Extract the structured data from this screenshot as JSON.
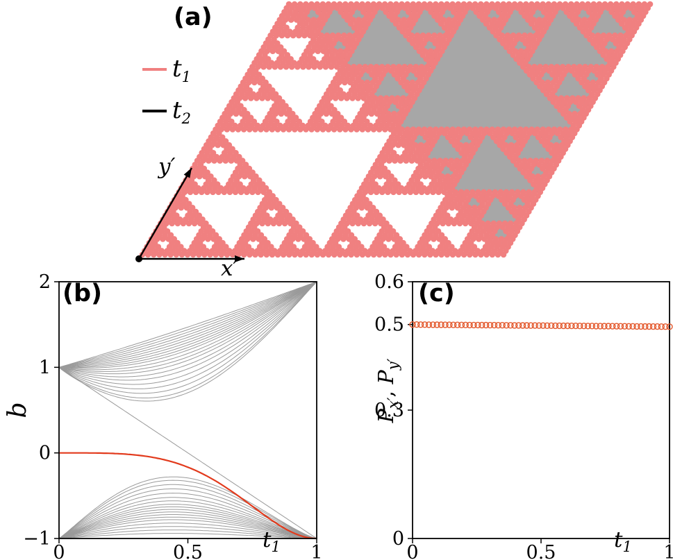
{
  "panel_a": {
    "label": "(a)",
    "legend": [
      {
        "main": "t",
        "sub": "1",
        "color": "#F08080"
      },
      {
        "main": "t",
        "sub": "2",
        "color": "#000000"
      }
    ],
    "x_axis_label": "x′",
    "y_axis_label": "y′",
    "lattice": {
      "type": "sierpinski-gasket-rhombus",
      "depth": 5,
      "site_color": "#F08080",
      "bond_color": "#141414",
      "hole_fill_upper": "#a7a7a7"
    }
  },
  "chart_data": [
    {
      "id": "b",
      "type": "line",
      "panel_label": "(b)",
      "xlabel": {
        "main": "t",
        "sub": "1"
      },
      "ylabel": "b",
      "xlim": [
        0,
        1
      ],
      "ylim": [
        -1,
        2
      ],
      "xticks": [
        "0",
        "0.5",
        "1"
      ],
      "xtick_values": [
        0,
        0.5,
        1
      ],
      "yticks": [
        "−1",
        "0",
        "1",
        "2"
      ],
      "ytick_values": [
        -1,
        0,
        1,
        2
      ],
      "grid": false,
      "spectrum_color": "#9a9a9a",
      "highlight_color": "#e23a1c",
      "bundles": {
        "upper": {
          "model": "y = start + (end-start)*t - sag*sin(pi*t^0.92)",
          "start": 1,
          "end": 2,
          "sags": [
            0.03,
            0.06,
            0.09,
            0.12,
            0.15,
            0.18,
            0.21,
            0.24,
            0.27,
            0.3,
            0.34,
            0.38,
            0.42,
            0.47,
            0.52,
            0.58,
            0.64,
            0.7,
            0.76,
            0.8
          ]
        },
        "lower": {
          "model": "y = base + peak*sin(pi*t^0.85)^1.25",
          "base": -1,
          "peaks": [
            0.06,
            0.1,
            0.14,
            0.18,
            0.22,
            0.25,
            0.28,
            0.31,
            0.34,
            0.37,
            0.4,
            0.44,
            0.48,
            0.53,
            0.58,
            0.63,
            0.68,
            0.72
          ]
        },
        "diagonal": {
          "from": 1,
          "to": -1
        },
        "flat": {
          "y": -1
        }
      },
      "highlight_curve": {
        "model": "y = start + (end-start)*sin(pi/2*t^power)^2",
        "start": 0,
        "end": -1,
        "power": 1.9
      }
    },
    {
      "id": "c",
      "type": "scatter",
      "panel_label": "(c)",
      "xlabel": {
        "main": "t",
        "sub": "1"
      },
      "ylabel_parts": {
        "p1": "P",
        "s1": "x′",
        "sep": ", ",
        "p2": "P",
        "s2": "y′"
      },
      "series": [
        "P_x′",
        "P_y′"
      ],
      "xlim": [
        0,
        1
      ],
      "ylim": [
        0,
        0.6
      ],
      "xticks": [
        "0",
        "0.5",
        "1"
      ],
      "xtick_values": [
        0,
        0.5,
        1
      ],
      "yticks": [
        "0",
        "0.3",
        "0.5",
        "0.6"
      ],
      "ytick_values": [
        0,
        0.3,
        0.5,
        0.6
      ],
      "grid": false,
      "marker": "open-circle",
      "marker_color": "#e3582c",
      "points": {
        "n": 64,
        "x_start": 0,
        "x_end": 1,
        "y_start": 0.5,
        "y_end": 0.495
      }
    }
  ]
}
